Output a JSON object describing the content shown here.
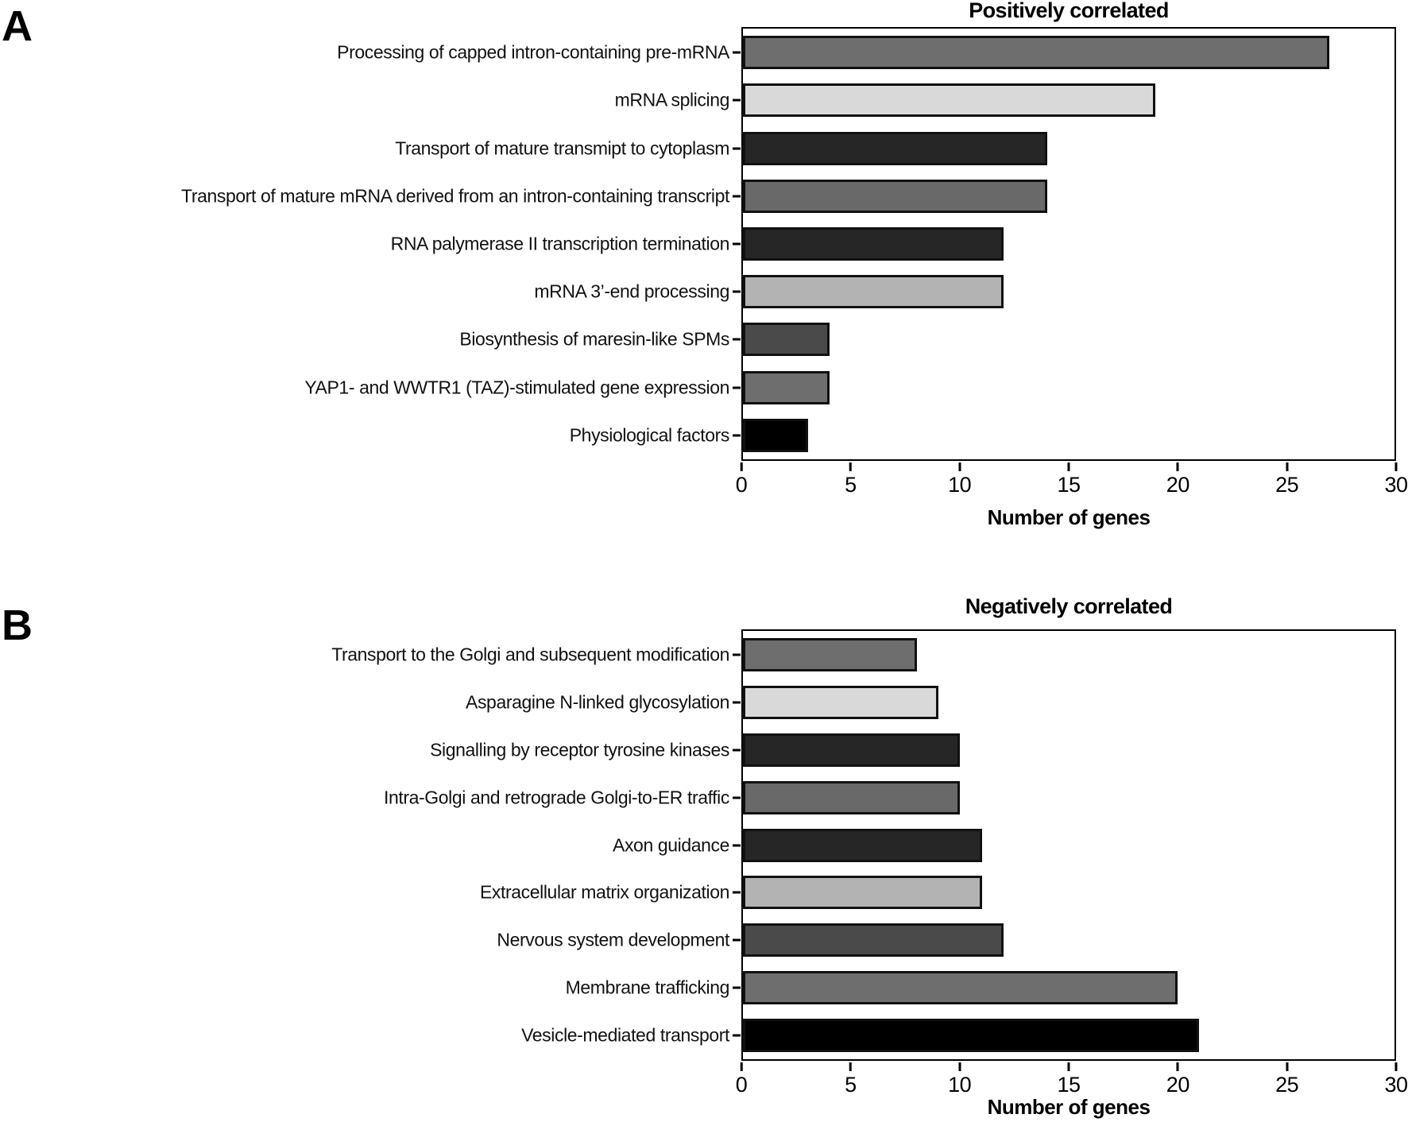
{
  "figure": {
    "background": "#ffffff",
    "bar_border_color": "#111111",
    "axis_color": "#000000"
  },
  "chart_data": [
    {
      "panel_label": "A",
      "type": "bar",
      "orientation": "horizontal",
      "title": "Positively correlated",
      "xlabel": "Number of genes",
      "xlim": [
        0,
        30
      ],
      "xticks": [
        0,
        5,
        10,
        15,
        20,
        25,
        30
      ],
      "grid": false,
      "legend": "none",
      "categories": [
        "Processing of capped intron-containing pre-mRNA",
        "mRNA splicing",
        "Transport of mature transmipt to cytoplasm",
        "Transport of mature mRNA derived from an intron-containing transcript",
        "RNA palymerase II transcription termination",
        "mRNA 3’-end processing",
        "Biosynthesis of maresin-like SPMs",
        "YAP1- and WWTR1 (TAZ)-stimulated gene expression",
        "Physiological factors"
      ],
      "values": [
        27,
        19,
        14,
        14,
        12,
        12,
        4,
        4,
        3
      ],
      "bar_colors": [
        "#6e6e6e",
        "#d9d9d9",
        "#262626",
        "#696969",
        "#262626",
        "#b3b3b3",
        "#4a4a4a",
        "#6e6e6e",
        "#000000"
      ]
    },
    {
      "panel_label": "B",
      "type": "bar",
      "orientation": "horizontal",
      "title": "Negatively correlated",
      "xlabel": "Number of genes",
      "xlim": [
        0,
        30
      ],
      "xticks": [
        0,
        5,
        10,
        15,
        20,
        25,
        30
      ],
      "grid": false,
      "legend": "none",
      "categories": [
        "Transport to the Golgi and subsequent modification",
        "Asparagine N-linked glycosylation",
        "Signalling by receptor tyrosine kinases",
        "Intra-Golgi and retrograde Golgi-to-ER traffic",
        "Axon guidance",
        "Extracellular matrix organization",
        "Nervous system development",
        "Membrane trafficking",
        "Vesicle-mediated transport"
      ],
      "values": [
        8,
        9,
        10,
        10,
        11,
        11,
        12,
        20,
        21
      ],
      "bar_colors": [
        "#6e6e6e",
        "#d9d9d9",
        "#262626",
        "#696969",
        "#262626",
        "#b3b3b3",
        "#4a4a4a",
        "#6e6e6e",
        "#000000"
      ]
    }
  ]
}
